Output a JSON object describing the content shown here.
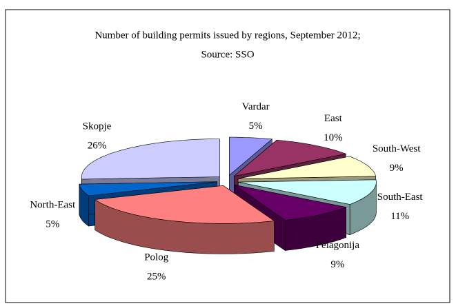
{
  "chart_data": {
    "type": "pie3d",
    "title": "Number of building permits issued by regions, September 2012;",
    "subtitle": "Source: SSO",
    "categories": [
      "Vardar",
      "East",
      "South-West",
      "South-East",
      "Pelagonija",
      "Polog",
      "North-East",
      "Skopje"
    ],
    "values": [
      5,
      10,
      9,
      11,
      9,
      25,
      5,
      26
    ],
    "value_labels": [
      "5%",
      "10%",
      "9%",
      "11%",
      "9%",
      "25%",
      "5%",
      "26%"
    ],
    "colors": [
      "#9999ff",
      "#993366",
      "#ffffcc",
      "#ccffff",
      "#660066",
      "#ff8080",
      "#0066cc",
      "#ccccff"
    ]
  }
}
